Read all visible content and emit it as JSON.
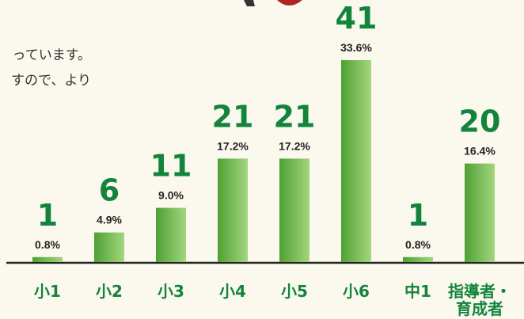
{
  "intro_lines": [
    "っています。",
    "すので、より"
  ],
  "chart_data": {
    "type": "bar",
    "categories": [
      "小1",
      "小2",
      "小3",
      "小4",
      "小5",
      "小6",
      "中1",
      "指導者・\n育成者"
    ],
    "values": [
      1,
      6,
      11,
      21,
      21,
      41,
      1,
      20
    ],
    "percentages": {
      "values": [
        0.8,
        4.9,
        9.0,
        17.2,
        17.2,
        33.6,
        0.8,
        16.4
      ],
      "value_labels": [
        "0.8%",
        "4.9%",
        "9.0%",
        "17.2%",
        "17.2%",
        "33.6%",
        "0.8%",
        "16.4%"
      ]
    },
    "color": "#6cbd4c"
  }
}
